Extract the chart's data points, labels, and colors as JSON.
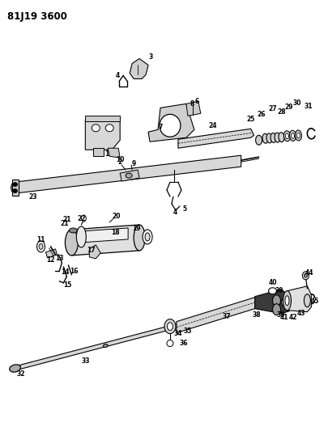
{
  "title": "81J19 3600",
  "bg": "#ffffff",
  "figsize": [
    4.06,
    5.33
  ],
  "dpi": 100,
  "lc": "#000000"
}
